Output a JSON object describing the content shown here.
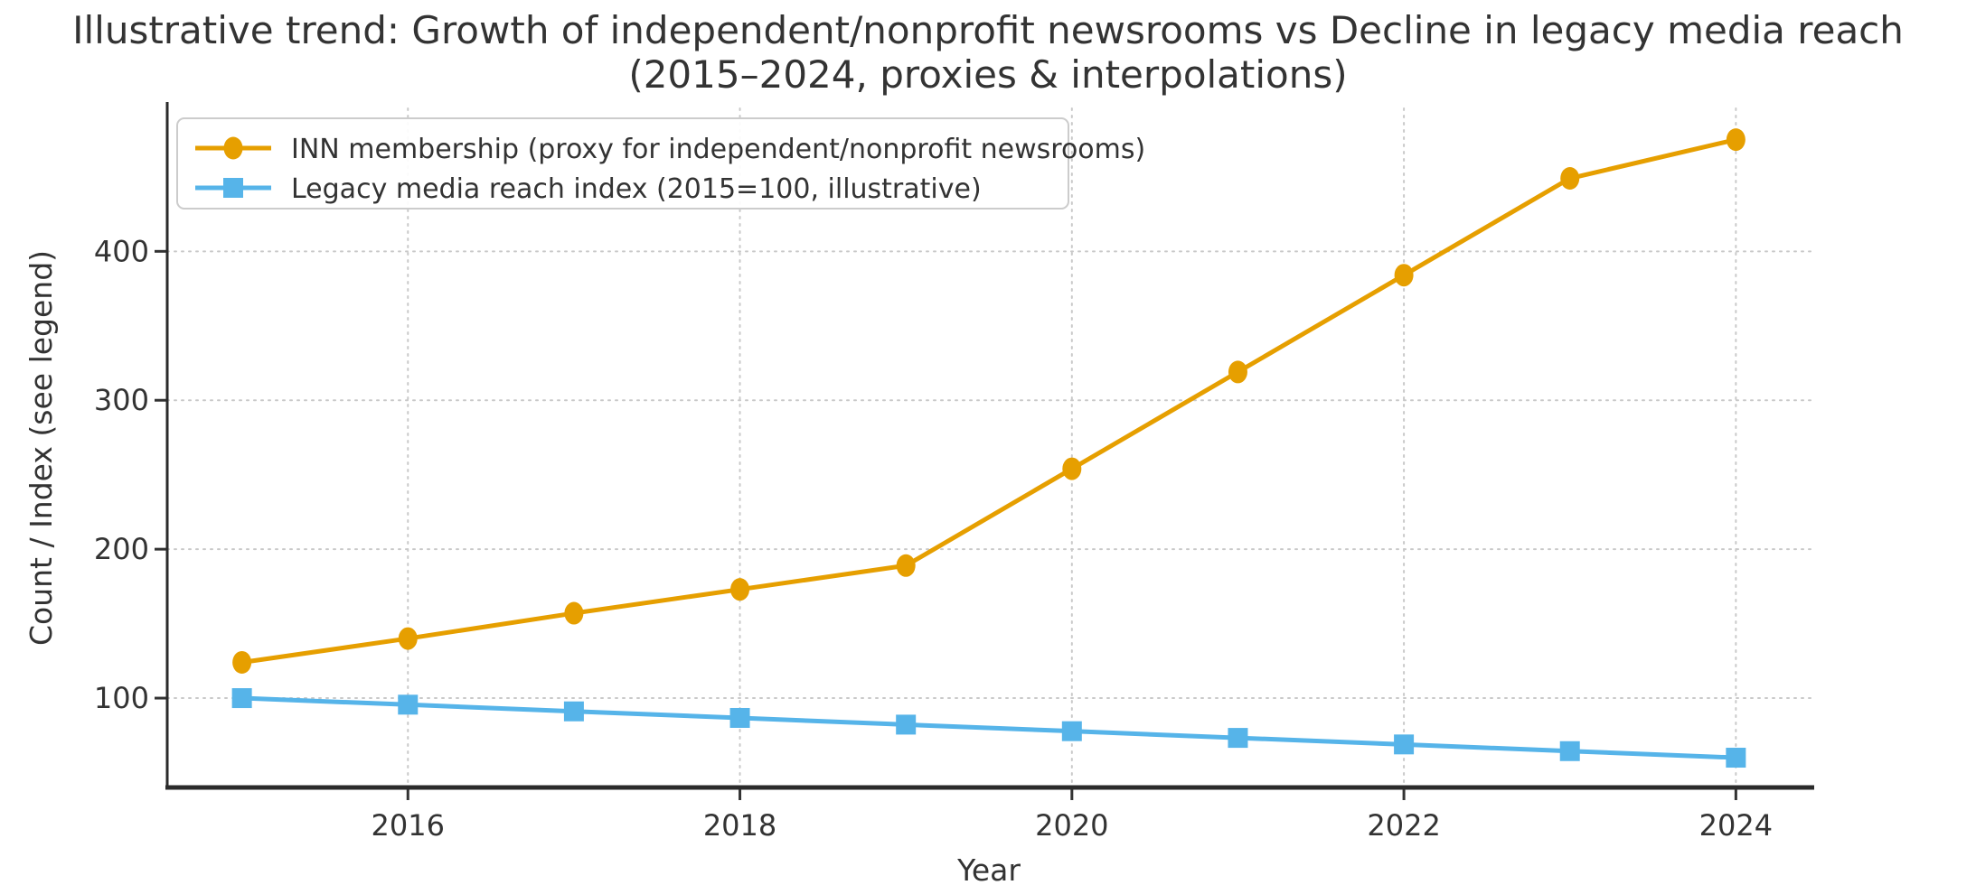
{
  "figure": {
    "title_line1": "Illustrative trend: Growth of independent/nonprofit newsrooms vs Decline in legacy media reach",
    "title_line2": "(2015–2024, proxies & interpolations)"
  },
  "chart_data": {
    "type": "line",
    "title": "Illustrative trend: Growth of independent/nonprofit newsrooms vs Decline in legacy media reach (2015–2024, proxies & interpolations)",
    "xlabel": "Year",
    "ylabel": "Count / Index (see legend)",
    "x": [
      2015,
      2016,
      2017,
      2018,
      2019,
      2020,
      2021,
      2022,
      2023,
      2024
    ],
    "series": [
      {
        "name": "INN membership (proxy for independent/nonprofit newsrooms)",
        "color": "#E69F00",
        "marker": "circle",
        "values": [
          124,
          140,
          157,
          173,
          189,
          254,
          319,
          384,
          449,
          475
        ]
      },
      {
        "name": "Legacy media reach index (2015=100, illustrative)",
        "color": "#56B4E9",
        "marker": "square",
        "values": [
          100,
          95.6,
          91.1,
          86.7,
          82.2,
          77.8,
          73.3,
          68.9,
          64.4,
          60
        ]
      }
    ],
    "xticks": [
      2016,
      2018,
      2020,
      2022,
      2024
    ],
    "yticks": [
      100,
      200,
      300,
      400
    ],
    "xlim": [
      2014.55,
      2024.45
    ],
    "ylim": [
      40,
      496
    ],
    "grid": true,
    "grid_style": "dotted",
    "legend_position": "upper left"
  }
}
